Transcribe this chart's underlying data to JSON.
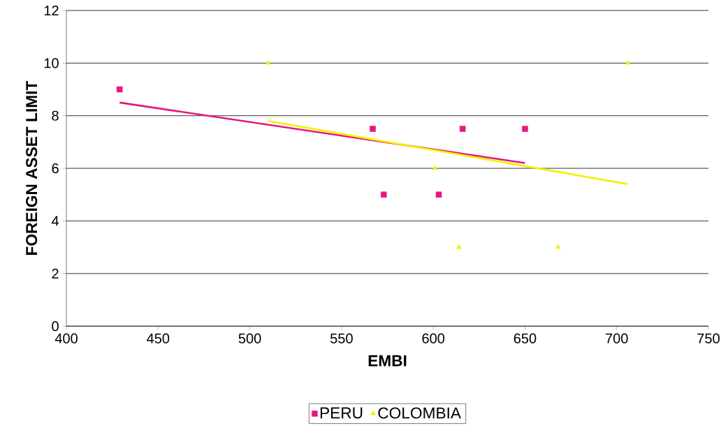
{
  "chart_data": {
    "type": "scatter",
    "xlabel": "EMBI",
    "ylabel": "FOREIGN ASSET LIMIT",
    "xlim": [
      400,
      750
    ],
    "xticks": [
      400,
      450,
      500,
      550,
      600,
      650,
      700,
      750
    ],
    "ylim": [
      0,
      12
    ],
    "yticks": [
      0,
      2,
      4,
      6,
      8,
      10,
      12
    ],
    "grid": "y",
    "legend": "bottom",
    "series": [
      {
        "name": "PERU",
        "color": "#e6177e",
        "marker": "square",
        "x": [
          429,
          567,
          573,
          603,
          616,
          650
        ],
        "values": [
          9,
          7.5,
          5,
          5,
          7.5,
          7.5
        ]
      },
      {
        "name": "COLOMBIA",
        "color": "#f5f000",
        "marker": "triangle",
        "x": [
          510,
          601,
          614,
          668,
          706
        ],
        "values": [
          10,
          6,
          3,
          3,
          10
        ]
      },
      {
        "type": "line",
        "color": "#e6177e",
        "x": [
          429,
          650
        ],
        "values": [
          8.5,
          6.2
        ]
      },
      {
        "type": "line",
        "color": "#f5f000",
        "x": [
          510,
          706
        ],
        "values": [
          7.8,
          5.4
        ]
      }
    ]
  }
}
